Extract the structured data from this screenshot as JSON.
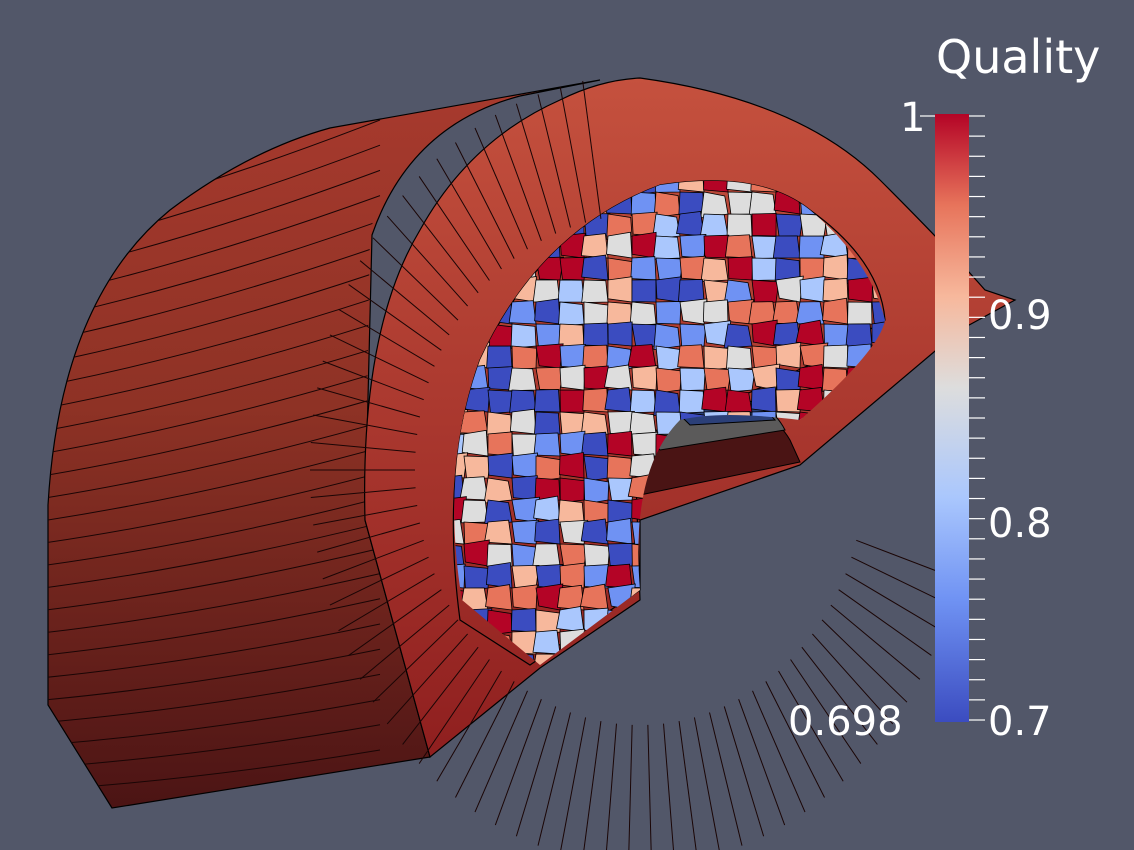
{
  "legend": {
    "title": "Quality",
    "range_max_label": "1",
    "range_min_label": "0.698",
    "ticks": [
      "0.9",
      "0.8",
      "0.7"
    ],
    "colormap": [
      "#3b4cc0",
      "#6f92f3",
      "#aac7fd",
      "#dddddd",
      "#f7b89c",
      "#e7745b",
      "#b40426"
    ]
  },
  "scene": {
    "background": "#525769",
    "mesh_edge_color": "#000000"
  }
}
